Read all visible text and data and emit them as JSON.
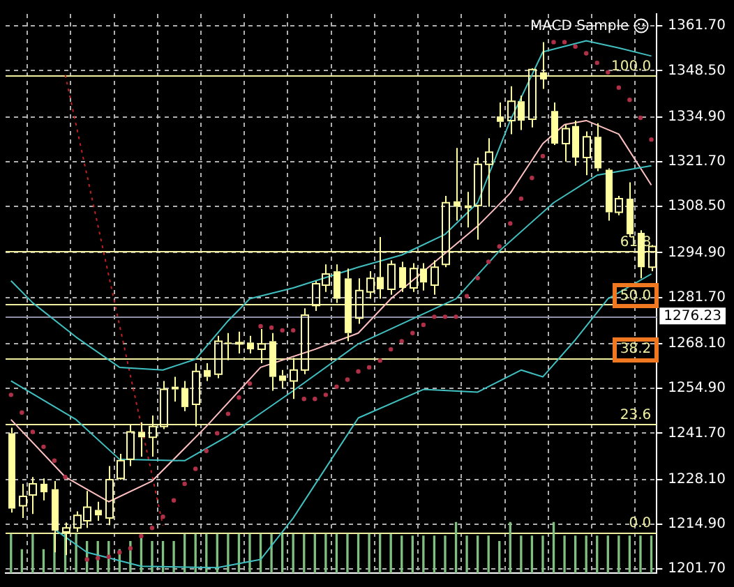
{
  "chart_data": {
    "type": "candlestick",
    "title": "MACD Sample",
    "color": "#ffffa0",
    "categories": [
      null,
      null,
      null,
      null,
      null,
      null,
      null,
      null,
      null,
      null,
      null,
      null,
      null,
      null,
      null,
      null,
      null,
      null,
      null,
      null,
      null,
      null,
      null,
      null,
      null,
      null,
      null,
      null,
      null,
      null,
      null,
      null,
      null,
      null,
      null,
      null,
      null,
      null,
      null,
      null,
      null,
      null,
      null,
      null,
      null,
      null,
      null,
      null,
      null,
      null,
      null,
      null,
      null,
      null,
      null,
      null,
      null,
      null,
      null,
      null
    ],
    "ohlc": [
      [
        1241.7,
        1243.3,
        1218.3,
        1219.5
      ],
      [
        1220.3,
        1226.8,
        1216.7,
        1223.1
      ],
      [
        1223.5,
        1228.8,
        1217.9,
        1226.8
      ],
      [
        1226.8,
        1228.4,
        1221.9,
        1224.3
      ],
      [
        1225.2,
        1227.6,
        1206.6,
        1213.0
      ],
      [
        1212.6,
        1215.4,
        1205.8,
        1213.8
      ],
      [
        1213.8,
        1218.7,
        1212.6,
        1217.5
      ],
      [
        1215.9,
        1224.7,
        1213.8,
        1219.9
      ],
      [
        1219.1,
        1221.5,
        1215.9,
        1217.5
      ],
      [
        1216.7,
        1232.0,
        1214.6,
        1228.0
      ],
      [
        1228.4,
        1235.6,
        1228.0,
        1233.6
      ],
      [
        1234.0,
        1244.1,
        1232.0,
        1242.1
      ],
      [
        1242.1,
        1244.9,
        1234.8,
        1240.5
      ],
      [
        1240.5,
        1246.9,
        1234.8,
        1243.7
      ],
      [
        1243.7,
        1257.1,
        1242.9,
        1254.6
      ],
      [
        1255.4,
        1258.3,
        1251.0,
        1254.6
      ],
      [
        1255.0,
        1257.1,
        1248.2,
        1249.4
      ],
      [
        1250.2,
        1262.3,
        1243.7,
        1259.9
      ],
      [
        1260.3,
        1262.3,
        1257.1,
        1258.3
      ],
      [
        1259.1,
        1270.4,
        1257.9,
        1268.8
      ],
      [
        1268.4,
        1271.2,
        1263.2,
        1268.0
      ],
      [
        1268.0,
        1271.6,
        1265.2,
        1268.4
      ],
      [
        1268.4,
        1270.4,
        1265.2,
        1266.4
      ],
      [
        1266.4,
        1272.4,
        1262.3,
        1268.0
      ],
      [
        1268.8,
        1271.2,
        1254.2,
        1258.3
      ],
      [
        1258.7,
        1260.3,
        1255.0,
        1257.1
      ],
      [
        1257.1,
        1263.9,
        1251.8,
        1260.3
      ],
      [
        1260.3,
        1278.5,
        1259.1,
        1276.5
      ],
      [
        1279.3,
        1286.5,
        1277.7,
        1285.7
      ],
      [
        1285.3,
        1291.4,
        1283.3,
        1288.6
      ],
      [
        1289.4,
        1291.4,
        1280.1,
        1281.3
      ],
      [
        1287.3,
        1290.2,
        1268.8,
        1271.2
      ],
      [
        1275.6,
        1287.3,
        1273.9,
        1283.7
      ],
      [
        1283.3,
        1289.4,
        1281.3,
        1287.3
      ],
      [
        1287.7,
        1299.5,
        1281.3,
        1284.1
      ],
      [
        1284.1,
        1292.6,
        1282.5,
        1291.4
      ],
      [
        1290.6,
        1292.2,
        1283.3,
        1284.5
      ],
      [
        1284.5,
        1291.8,
        1283.3,
        1290.2
      ],
      [
        1290.2,
        1291.8,
        1283.7,
        1286.1
      ],
      [
        1285.3,
        1292.6,
        1282.5,
        1290.6
      ],
      [
        1291.4,
        1311.6,
        1290.6,
        1309.6
      ],
      [
        1310.0,
        1325.7,
        1304.3,
        1308.4
      ],
      [
        1308.8,
        1312.8,
        1302.3,
        1308.0
      ],
      [
        1308.8,
        1322.9,
        1298.7,
        1320.9
      ],
      [
        1320.9,
        1328.6,
        1308.4,
        1324.5
      ],
      [
        1335.0,
        1339.1,
        1331.8,
        1333.4
      ],
      [
        1333.8,
        1343.9,
        1329.8,
        1339.5
      ],
      [
        1339.5,
        1341.1,
        1331.0,
        1333.8
      ],
      [
        1334.2,
        1349.2,
        1331.8,
        1348.8
      ],
      [
        1348.0,
        1356.9,
        1343.1,
        1345.9
      ],
      [
        1336.6,
        1339.1,
        1326.6,
        1327.0
      ],
      [
        1327.0,
        1332.6,
        1321.7,
        1331.4
      ],
      [
        1332.2,
        1333.8,
        1320.5,
        1322.9
      ],
      [
        1322.9,
        1330.6,
        1317.7,
        1329.0
      ],
      [
        1329.0,
        1333.0,
        1318.9,
        1319.7
      ],
      [
        1319.3,
        1319.7,
        1304.3,
        1306.8
      ],
      [
        1306.8,
        1311.6,
        1305.9,
        1310.8
      ],
      [
        1310.8,
        1315.6,
        1299.5,
        1300.3
      ],
      [
        1300.7,
        1301.5,
        1287.3,
        1290.6
      ],
      [
        1290.6,
        1297.1,
        1289.4,
        1296.7
      ]
    ],
    "series": [
      {
        "type": "bar",
        "color": "#80c080",
        "values": [
          1211.9,
          1207.4,
          1211.9,
          1207.4,
          1211.9,
          1211.9,
          1211.9,
          1209.8,
          1209.8,
          1209.8,
          1207.4,
          1209.8,
          1211.9,
          1209.8,
          1209.8,
          1209.8,
          1211.9,
          1211.9,
          1211.9,
          1211.9,
          1211.9,
          1211.9,
          1211.9,
          1211.9,
          1211.9,
          1211.9,
          1211.9,
          1211.9,
          1211.9,
          1211.9,
          1211.9,
          1211.9,
          1211.9,
          1211.9,
          1211.9,
          1211.9,
          1211.4,
          1211.4,
          1211.4,
          1211.4,
          1211.4,
          1215.4,
          1211.4,
          1211.4,
          1211.4,
          1209.8,
          1215.4,
          1211.4,
          1211.4,
          1211.4,
          1215.4,
          1211.4,
          1211.4,
          1211.4,
          1211.4,
          1211.4,
          1211.4,
          1211.4,
          1211.4,
          1211.4
        ]
      },
      {
        "type": "line",
        "color": "#40c0c0",
        "values": [
          1286.6,
          null,
          1280.1,
          null,
          null,
          null,
          1270.0,
          null,
          null,
          null,
          1261.1,
          null,
          null,
          null,
          1260.3,
          null,
          null,
          1263.5,
          null,
          null,
          1274.8,
          null,
          1281.3,
          null,
          null,
          null,
          1284.5,
          null,
          null,
          null,
          null,
          null,
          1290.6,
          null,
          null,
          null,
          1294.2,
          null,
          null,
          null,
          1300.3,
          null,
          null,
          1309.6,
          null,
          null,
          1333.8,
          null,
          null,
          1354.0,
          null,
          null,
          null,
          1357.3,
          null,
          null,
          1355.2,
          null,
          null,
          1352.8
        ]
      },
      {
        "type": "line",
        "color": "#40c0c0",
        "values": [
          1257.1,
          null,
          null,
          null,
          null,
          null,
          1245.7,
          null,
          null,
          null,
          1234.0,
          null,
          null,
          null,
          null,
          null,
          1233.6,
          null,
          null,
          null,
          1240.9,
          null,
          null,
          null,
          null,
          null,
          1254.2,
          null,
          null,
          null,
          null,
          null,
          1268.0,
          null,
          null,
          null,
          null,
          null,
          null,
          null,
          null,
          1281.3,
          null,
          null,
          null,
          1295.4,
          null,
          null,
          null,
          null,
          1309.6,
          null,
          null,
          null,
          1317.7,
          null,
          null,
          null,
          null,
          1320.5
        ]
      },
      {
        "type": "line",
        "color": "#40c0c0",
        "values": [
          null,
          null,
          null,
          null,
          1213.4,
          null,
          null,
          1206.6,
          null,
          null,
          null,
          null,
          1202.5,
          null,
          null,
          null,
          null,
          null,
          null,
          1202.1,
          null,
          null,
          null,
          1204.5,
          null,
          null,
          1216.7,
          null,
          null,
          null,
          null,
          null,
          1246.2,
          null,
          null,
          null,
          null,
          null,
          1254.6,
          null,
          null,
          null,
          null,
          1253.8,
          null,
          null,
          null,
          1260.3,
          null,
          1258.3,
          null,
          null,
          1269.2,
          null,
          null,
          1281.3,
          null,
          null,
          null,
          1288.6
        ]
      },
      {
        "type": "line",
        "color": "#ffc0c0",
        "values": [
          1245.7,
          null,
          null,
          null,
          null,
          1228.8,
          null,
          null,
          null,
          1221.5,
          null,
          null,
          null,
          1227.6,
          null,
          null,
          null,
          null,
          1243.7,
          null,
          null,
          null,
          null,
          1261.1,
          null,
          null,
          null,
          null,
          1266.4,
          null,
          null,
          null,
          1271.2,
          null,
          null,
          1281.3,
          null,
          null,
          null,
          null,
          null,
          null,
          null,
          1302.7,
          null,
          null,
          1312.4,
          null,
          null,
          1327.0,
          null,
          1332.6,
          null,
          1333.8,
          null,
          null,
          1329.8,
          null,
          null,
          1314.8
        ]
      },
      {
        "type": "line",
        "color": "#c02020",
        "line_style": "dotted",
        "values": [
          null,
          null,
          null,
          null,
          null,
          1347.2,
          null,
          null,
          null,
          null,
          null,
          null,
          null,
          null,
          1214.5,
          null,
          null,
          null,
          null,
          null,
          null,
          null,
          null,
          null,
          null,
          null,
          null,
          null,
          null,
          null,
          null,
          null,
          null,
          null,
          null,
          null,
          null,
          null,
          null,
          null,
          null,
          null,
          null,
          null,
          null,
          null,
          null,
          null,
          null,
          null,
          null,
          null,
          null,
          null,
          null,
          null,
          null,
          null,
          null,
          null
        ]
      },
      {
        "type": "scatter",
        "color": "#b03048",
        "marker": "circle",
        "values": [
          1253.0,
          1247.8,
          1242.1,
          1237.7,
          1233.6,
          1228.8,
          null,
          1204.5,
          1204.9,
          1205.3,
          1206.6,
          1207.8,
          1211.4,
          1213.8,
          1217.1,
          1221.9,
          1226.8,
          1231.2,
          1236.5,
          1241.7,
          1247.4,
          1252.2,
          1256.3,
          1273.2,
          1272.8,
          1272.0,
          1272.0,
          1251.8,
          1251.8,
          1253.0,
          1255.4,
          1257.5,
          1259.9,
          1261.1,
          1263.1,
          1266.4,
          1268.8,
          1271.2,
          1273.6,
          1276.0,
          1276.0,
          1276.0,
          1282.1,
          1287.4,
          1292.2,
          1296.7,
          1303.5,
          1310.8,
          1316.9,
          1323.3,
          1356.9,
          1356.9,
          1355.6,
          1353.6,
          1350.8,
          1348.0,
          1343.5,
          1339.9,
          1334.6,
          1328.2
        ]
      }
    ],
    "ylim": [
      1200.5,
      1365.2
    ],
    "yticks": [
      {
        "value": 1361.7,
        "label": "1361.70"
      },
      {
        "value": 1348.5,
        "label": "1348.50"
      },
      {
        "value": 1334.9,
        "label": "1334.90"
      },
      {
        "value": 1321.7,
        "label": "1321.70"
      },
      {
        "value": 1308.5,
        "label": "1308.50"
      },
      {
        "value": 1294.9,
        "label": "1294.90"
      },
      {
        "value": 1281.7,
        "label": "1281.70"
      },
      {
        "value": 1268.1,
        "label": "1268.10"
      },
      {
        "value": 1254.9,
        "label": "1254.90"
      },
      {
        "value": 1241.7,
        "label": "1241.70"
      },
      {
        "value": 1228.1,
        "label": "1228.10"
      },
      {
        "value": 1214.9,
        "label": "1214.90"
      },
      {
        "value": 1201.7,
        "label": "1201.70"
      }
    ],
    "ref_lines": [
      {
        "axis": "y",
        "value": 1347.2,
        "color": "#f0f0a0"
      },
      {
        "axis": "y",
        "value": 1295.4,
        "color": "#f0f0a0"
      },
      {
        "axis": "y",
        "value": 1279.7,
        "color": "#f0f0a0"
      },
      {
        "axis": "y",
        "value": 1263.9,
        "color": "#f0f0a0"
      },
      {
        "axis": "y",
        "value": 1244.5,
        "color": "#f0f0a0"
      },
      {
        "axis": "y",
        "value": 1212.6,
        "color": "#f0f0a0"
      },
      {
        "axis": "y",
        "value": 1276.23,
        "label": "1276.23",
        "color": "#9090a8"
      }
    ],
    "annotations": [
      {
        "text": "100.0",
        "y": 1347.2
      },
      {
        "text": "61.8",
        "y": 1295.4
      },
      {
        "text": "50.0",
        "y": 1279.7
      },
      {
        "text": "38.2",
        "y": 1263.9
      },
      {
        "text": "23.6",
        "y": 1244.5
      },
      {
        "text": "0.0",
        "y": 1212.6
      }
    ],
    "grid": true,
    "legend": false,
    "tick_labels": "y"
  }
}
